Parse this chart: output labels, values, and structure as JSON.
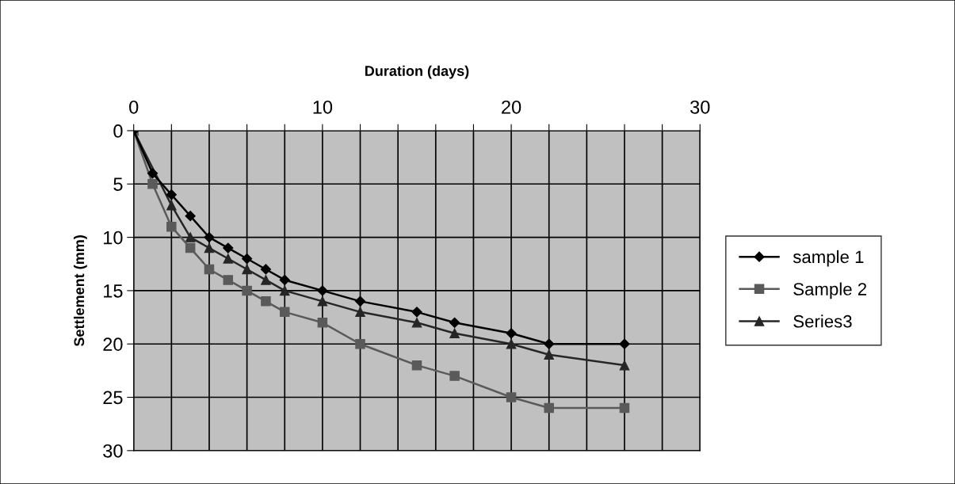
{
  "chart_data": {
    "type": "line",
    "xlabel": "Duration (days)",
    "ylabel": "Settlement (mm)",
    "xlim": [
      0,
      30
    ],
    "ylim": [
      30,
      0
    ],
    "xticks": [
      0,
      {
        "value": 2,
        "label": null
      },
      {
        "value": 4,
        "label": null
      },
      {
        "value": 6,
        "label": null
      },
      {
        "value": 8,
        "label": null
      },
      10,
      {
        "value": 12,
        "label": null
      },
      {
        "value": 14,
        "label": null
      },
      {
        "value": 16,
        "label": null
      },
      {
        "value": 18,
        "label": null
      },
      20,
      {
        "value": 22,
        "label": null
      },
      {
        "value": 24,
        "label": null
      },
      {
        "value": 26,
        "label": null
      },
      {
        "value": 28,
        "label": null
      },
      30
    ],
    "yticks": [
      0,
      5,
      10,
      15,
      20,
      25,
      30
    ],
    "grid": true,
    "legend": "right",
    "line_style": "solid",
    "series": [
      {
        "name": "sample 1",
        "color": "#000000",
        "marker": "diamond",
        "x": [
          0,
          1,
          2,
          3,
          4,
          5,
          6,
          7,
          8,
          10,
          12,
          15,
          17,
          20,
          22,
          26
        ],
        "values": [
          0,
          4,
          6,
          8,
          10,
          11,
          12,
          13,
          14,
          15,
          16,
          17,
          18,
          19,
          20,
          20
        ]
      },
      {
        "name": "Sample 2",
        "color": "#5a5a5a",
        "marker": "square",
        "x": [
          0,
          1,
          2,
          3,
          4,
          5,
          6,
          7,
          8,
          10,
          12,
          15,
          17,
          20,
          22,
          26
        ],
        "values": [
          0,
          5,
          9,
          11,
          13,
          14,
          15,
          16,
          17,
          18,
          20,
          22,
          23,
          25,
          26,
          26
        ]
      },
      {
        "name": "Series3",
        "color": "#262626",
        "marker": "triangle",
        "x": [
          0,
          2,
          3,
          4,
          5,
          6,
          7,
          8,
          10,
          12,
          15,
          17,
          20,
          22,
          26
        ],
        "values": [
          0,
          7,
          10,
          11,
          12,
          13,
          14,
          15,
          16,
          17,
          18,
          19,
          20,
          21,
          22
        ]
      }
    ]
  }
}
